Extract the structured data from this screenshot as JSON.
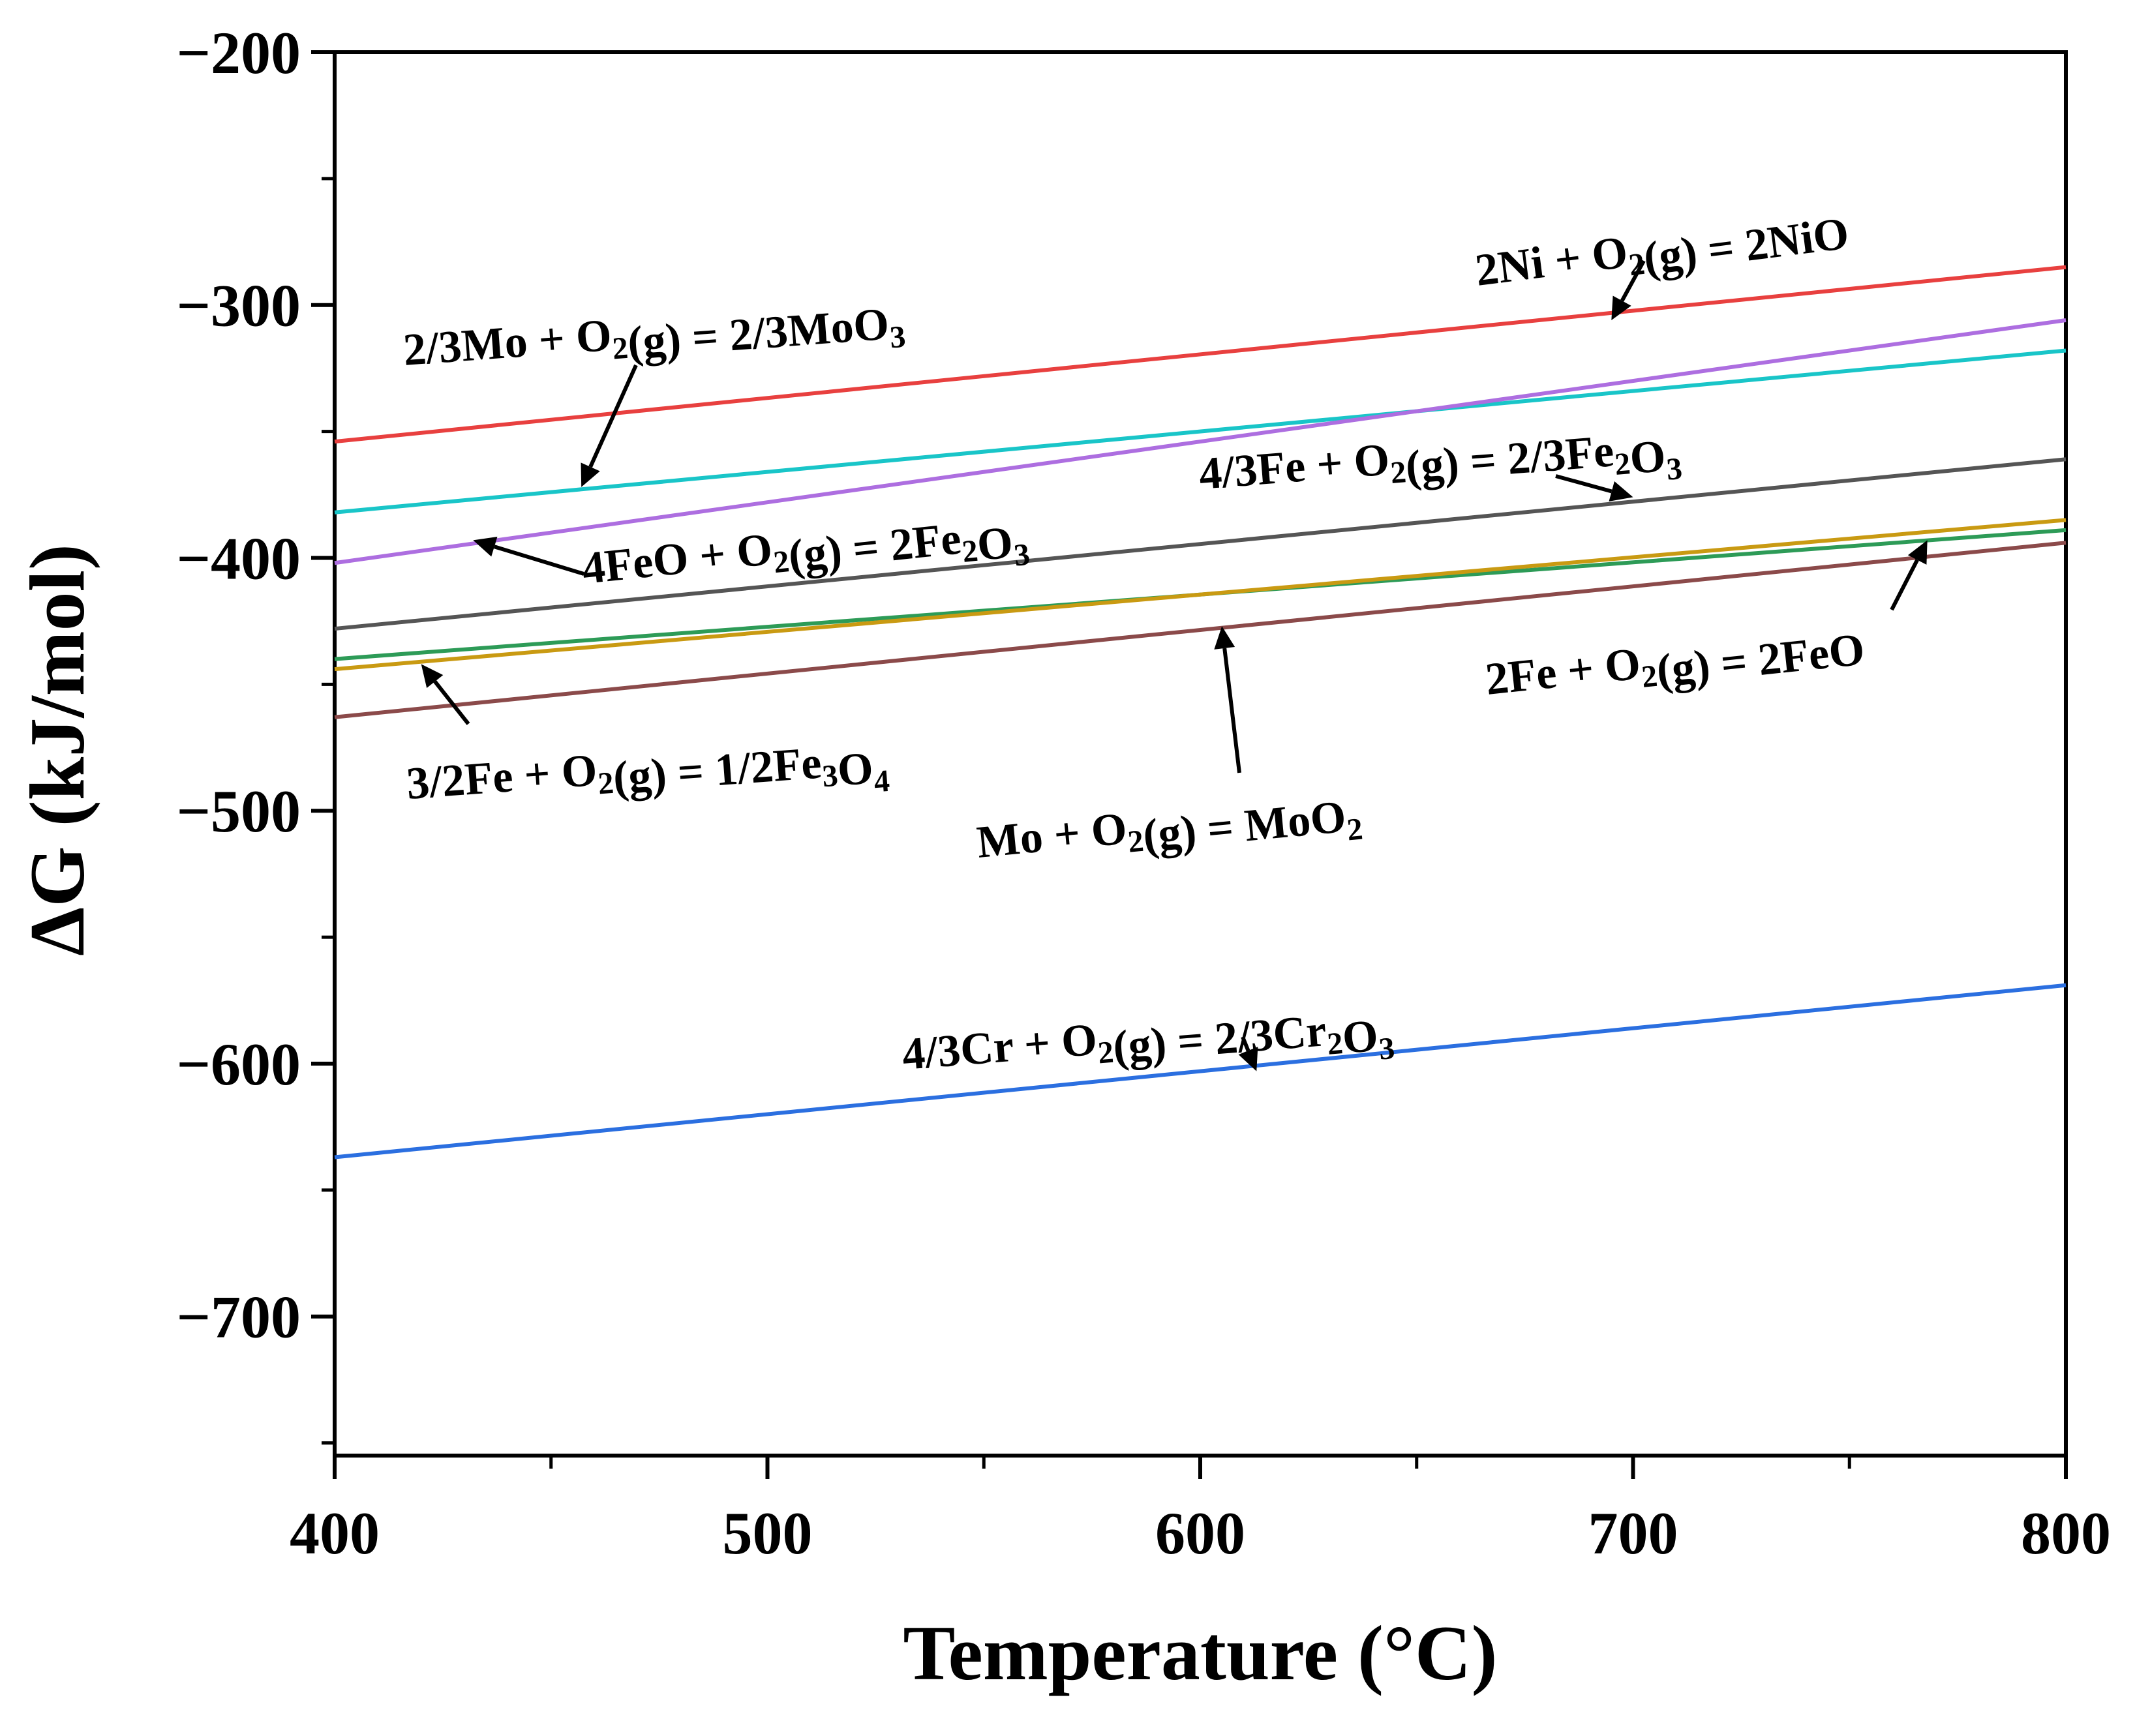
{
  "chart_data": {
    "type": "line",
    "xlabel": "Temperature (°C)",
    "ylabel": "ΔG (kJ/mol)",
    "xlim": [
      400,
      800
    ],
    "ylim": [
      -755,
      -200
    ],
    "x_ticks": [
      "400",
      "500",
      "600",
      "700",
      "800"
    ],
    "y_ticks": [
      "−200",
      "−300",
      "−400",
      "−500",
      "−600",
      "−700"
    ],
    "x": [
      400,
      800
    ],
    "series": [
      {
        "name": "2Ni + O2(g) = 2NiO",
        "color": "#e8403f",
        "values": [
          -354,
          -285
        ]
      },
      {
        "name": "2/3Mo + O2(g) = 2/3MoO3",
        "color": "#19c5c8",
        "values": [
          -382,
          -318
        ]
      },
      {
        "name": "4FeO + O2(g) = 2Fe2O3",
        "color": "#ad6ee0",
        "values": [
          -402,
          -306
        ]
      },
      {
        "name": "4/3Fe + O2(g) = 2/3Fe2O3",
        "color": "#555555",
        "values": [
          -428,
          -361
        ]
      },
      {
        "name": "2Fe + O2(g) = 2FeO",
        "color": "#2d9b57",
        "values": [
          -440,
          -389
        ]
      },
      {
        "name": "3/2Fe + O2(g) = 1/2Fe3O4",
        "color": "#c99a12",
        "values": [
          -444,
          -385
        ]
      },
      {
        "name": "Mo + O2(g) = MoO2",
        "color": "#8b4a4a",
        "values": [
          -463,
          -394
        ]
      },
      {
        "name": "4/3Cr + O2(g) = 2/3Cr2O3",
        "color": "#2b6fe0",
        "values": [
          -637,
          -569
        ]
      }
    ],
    "annotations": [
      {
        "pre": "2Ni + O",
        "sub1": "2",
        "mid": "(g) = 2NiO",
        "sub2": "",
        "post": "",
        "target": [
          695,
          -306
        ]
      },
      {
        "pre": "2/3Mo + O",
        "sub1": "2",
        "mid": "(g) = 2/3MoO",
        "sub2": "3",
        "post": "",
        "target": [
          457,
          -372
        ]
      },
      {
        "pre": "4FeO + O",
        "sub1": "2",
        "mid": "(g) = 2Fe",
        "sub2": "2",
        "post": "O3",
        "target": [
          432,
          -393
        ]
      },
      {
        "pre": "4/3Fe + O",
        "sub1": "2",
        "mid": "(g) = 2/3Fe",
        "sub2": "2",
        "post": "O3",
        "target": [
          700,
          -376
        ]
      },
      {
        "pre": "2Fe + O",
        "sub1": "2",
        "mid": "(g) = 2FeO",
        "sub2": "",
        "post": "",
        "target": [
          768,
          -393
        ]
      },
      {
        "pre": "3/2Fe + O",
        "sub1": "2",
        "mid": "(g) = 1/2Fe",
        "sub2": "3",
        "post": "O4",
        "target": [
          420,
          -442
        ]
      },
      {
        "pre": "Mo + O",
        "sub1": "2",
        "mid": "(g) = MoO",
        "sub2": "2",
        "post": "",
        "target": [
          605,
          -427
        ]
      },
      {
        "pre": "4/3Cr + O",
        "sub1": "2",
        "mid": "(g) = 2/3Cr",
        "sub2": "2",
        "post": "O3",
        "target": [
          613,
          -603
        ]
      }
    ]
  }
}
